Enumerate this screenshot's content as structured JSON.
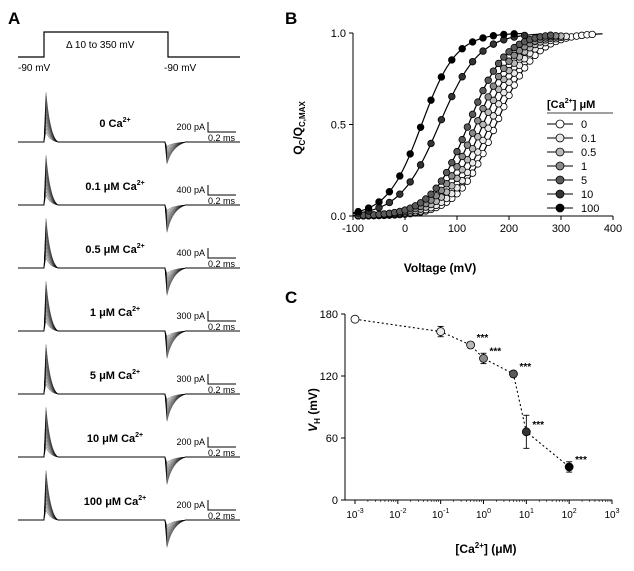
{
  "panel_labels": {
    "a": "A",
    "b": "B",
    "c": "C"
  },
  "panel_a": {
    "protocol": {
      "hold_left": "-90 mV",
      "hold_right": "-90 mV",
      "step": "Δ 10 to 350 mV"
    },
    "scale_time": "0.2 ms",
    "traces": [
      {
        "label": "0 Ca",
        "sup": "2+",
        "scale": "200 pA"
      },
      {
        "label": "0.1 μM Ca",
        "sup": "2+",
        "scale": "400 pA"
      },
      {
        "label": "0.5 μM Ca",
        "sup": "2+",
        "scale": "400 pA"
      },
      {
        "label": "1 μM Ca",
        "sup": "2+",
        "scale": "300 pA"
      },
      {
        "label": "5 μM Ca",
        "sup": "2+",
        "scale": "300 pA"
      },
      {
        "label": "10 μM Ca",
        "sup": "2+",
        "scale": "200 pA"
      },
      {
        "label": "100 μM Ca",
        "sup": "2+",
        "scale": "200 pA"
      }
    ]
  },
  "chart_data": [
    {
      "type": "scatter",
      "panel": "B",
      "xlabel": "Voltage (mV)",
      "ylabel": {
        "main": "Q",
        "sub1": "C",
        "mid": "/Q",
        "sub2": "C,MAX"
      },
      "xlim": [
        -100,
        400
      ],
      "ylim": [
        0,
        1
      ],
      "xticks": [
        "-100",
        "0",
        "100",
        "200",
        "300",
        "400"
      ],
      "yticks": [
        "0.0",
        "0.5",
        "1.0"
      ],
      "legend": {
        "title_pre": "[Ca",
        "title_sup": "2+",
        "title_post": "] μM",
        "placement": "right",
        "entries": [
          "0",
          "0.1",
          "0.5",
          "1",
          "5",
          "10",
          "100"
        ]
      },
      "series": [
        {
          "name": "0",
          "color": "#ffffff",
          "vh": 175,
          "slope": 38,
          "x_start": -90,
          "x_end": 360,
          "step": 10
        },
        {
          "name": "0.1",
          "color": "#e8e8e8",
          "vh": 163,
          "slope": 37,
          "x_start": -90,
          "x_end": 310,
          "step": 10
        },
        {
          "name": "0.5",
          "color": "#b8b8b8",
          "vh": 150,
          "slope": 37,
          "x_start": -90,
          "x_end": 300,
          "step": 10
        },
        {
          "name": "1",
          "color": "#8a8a8a",
          "vh": 137,
          "slope": 37,
          "x_start": -90,
          "x_end": 290,
          "step": 10
        },
        {
          "name": "5",
          "color": "#5a5a5a",
          "vh": 122,
          "slope": 36,
          "x_start": -90,
          "x_end": 280,
          "step": 10
        },
        {
          "name": "10",
          "color": "#333333",
          "vh": 66,
          "slope": 38,
          "x_start": -90,
          "x_end": 240,
          "step": 20
        },
        {
          "name": "100",
          "color": "#000000",
          "vh": 32,
          "slope": 33,
          "x_start": -90,
          "x_end": 210,
          "step": 20
        }
      ]
    },
    {
      "type": "scatter",
      "panel": "C",
      "xlabel": {
        "pre": "[Ca",
        "sup": "2+",
        "post": "] (μM)"
      },
      "ylabel": {
        "main": "V",
        "sub": "H",
        "post": " (mV)"
      },
      "xscale": "log",
      "xlim": [
        0.001,
        1000
      ],
      "ylim": [
        0,
        180
      ],
      "yticks": [
        "0",
        "60",
        "120",
        "180"
      ],
      "xticks": [
        {
          "base": "10",
          "exp": "-3"
        },
        {
          "base": "10",
          "exp": "-2"
        },
        {
          "base": "10",
          "exp": "-1"
        },
        {
          "base": "10",
          "exp": "0"
        },
        {
          "base": "10",
          "exp": "1"
        },
        {
          "base": "10",
          "exp": "2"
        },
        {
          "base": "10",
          "exp": "3"
        }
      ],
      "points": [
        {
          "ca": 0.001,
          "vh": 175,
          "err": 2,
          "color": "#ffffff",
          "sig": ""
        },
        {
          "ca": 0.1,
          "vh": 163,
          "err": 5,
          "color": "#e8e8e8",
          "sig": ""
        },
        {
          "ca": 0.5,
          "vh": 150,
          "err": 3,
          "color": "#b8b8b8",
          "sig": "***"
        },
        {
          "ca": 1,
          "vh": 137,
          "err": 5,
          "color": "#8a8a8a",
          "sig": "***"
        },
        {
          "ca": 5,
          "vh": 122,
          "err": 3,
          "color": "#5a5a5a",
          "sig": "***"
        },
        {
          "ca": 10,
          "vh": 66,
          "err": 16,
          "color": "#333333",
          "sig": "***"
        },
        {
          "ca": 100,
          "vh": 32,
          "err": 5,
          "color": "#000000",
          "sig": "***"
        }
      ]
    }
  ]
}
